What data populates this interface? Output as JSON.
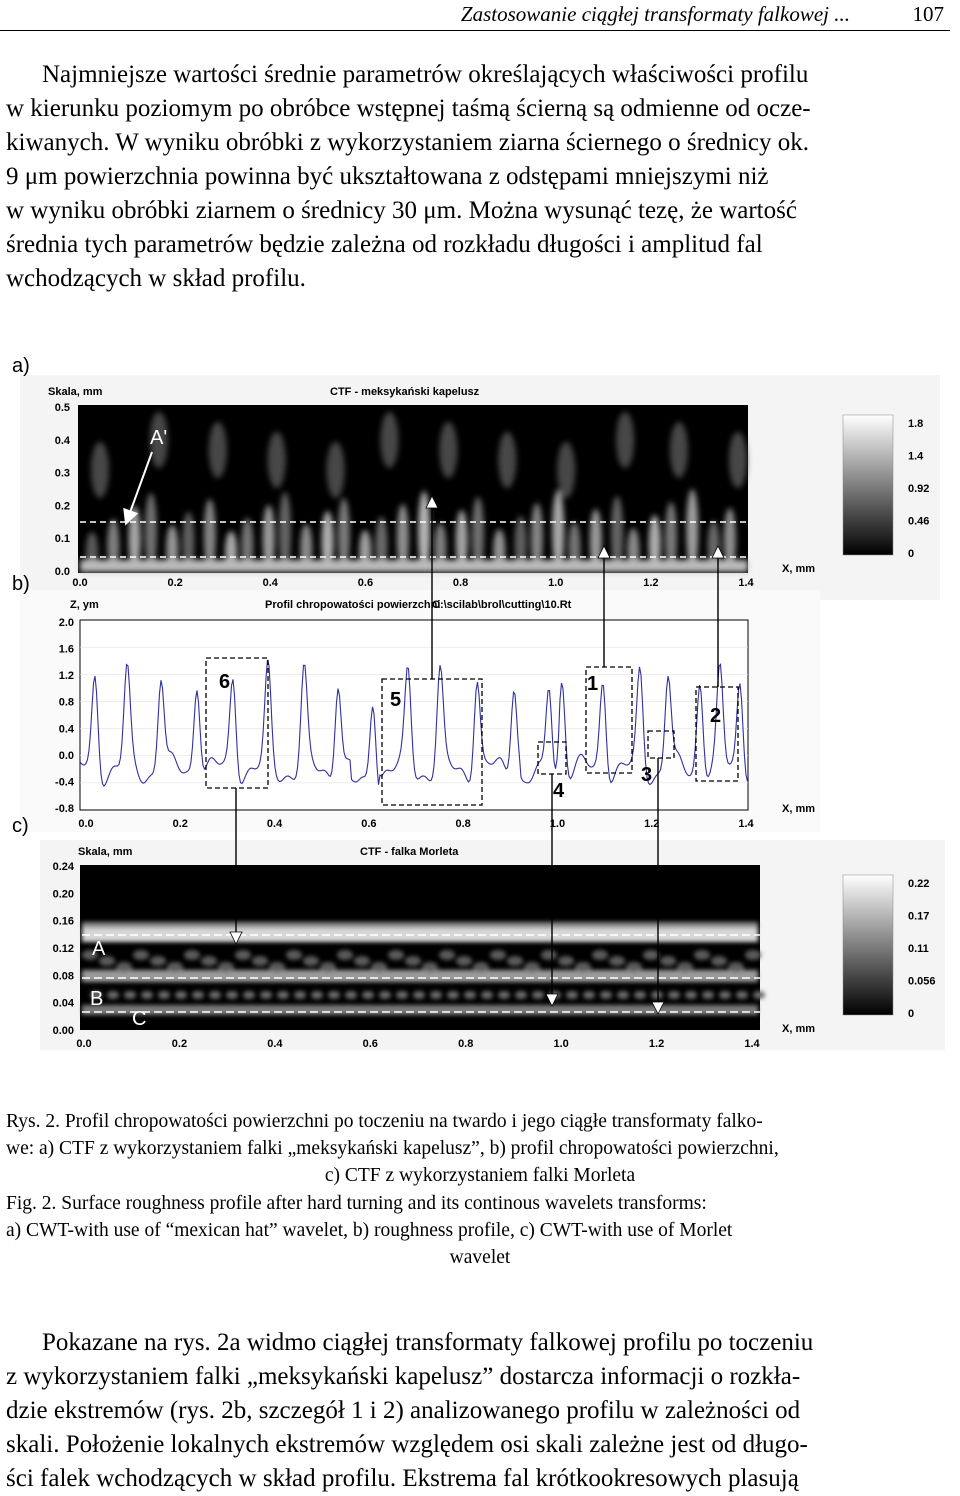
{
  "header": {
    "title": "Zastosowanie ciągłej transformaty falkowej ...",
    "page_number": "107"
  },
  "paragraph1": [
    "Najmniejsze wartości średnie parametrów określających właściwości profilu",
    "w kierunku poziomym po obróbce wstępnej taśmą ścierną są odmienne od ocze-",
    "kiwanych. W wyniku obróbki z wykorzystaniem ziarna ściernego o średnicy ok.",
    "9 μm powierzchnia powinna być ukształtowana z odstępami mniejszymi niż",
    "w wyniku obróbki ziarnem o średnicy 30 μm. Można wysunąć tezę, że wartość",
    "średnia tych parametrów będzie zależna od rozkładu długości i amplitud fal",
    "wchodzących w skład profilu."
  ],
  "figure": {
    "panel_a": {
      "letter": "a)",
      "title": "CTF - meksykański kapelusz",
      "ylabel": "Skala, mm",
      "xlabel": "X, mm",
      "yticks": [
        "0.5",
        "0.4",
        "0.3",
        "0.2",
        "0.1",
        "0.0"
      ],
      "xticks": [
        "0.0",
        "0.2",
        "0.4",
        "0.6",
        "0.8",
        "1.0",
        "1.2",
        "1.4"
      ],
      "colorbar_ticks": [
        "1.8",
        "1.4",
        "0.92",
        "0.46",
        "0"
      ],
      "annotation": "A'"
    },
    "panel_b": {
      "letter": "b)",
      "ylabel": "Z, ym",
      "title": "Profil chropowatości powierzchni",
      "filepath": "C:\\scilab\\brol\\cutting\\10.Rt",
      "xlabel": "X, mm",
      "yticks": [
        "2.0",
        "1.6",
        "1.2",
        "0.8",
        "0.4",
        "0.0",
        "-0.4",
        "-0.8"
      ],
      "xticks": [
        "0.0",
        "0.2",
        "0.4",
        "0.6",
        "0.8",
        "1.0",
        "1.2",
        "1.4"
      ],
      "box_labels": [
        "6",
        "5",
        "1",
        "2",
        "4",
        "3"
      ]
    },
    "panel_c": {
      "letter": "c)",
      "title": "CTF - falka Morleta",
      "ylabel": "Skala, mm",
      "xlabel": "X, mm",
      "yticks": [
        "0.24",
        "0.20",
        "0.16",
        "0.12",
        "0.08",
        "0.04",
        "0.00"
      ],
      "xticks": [
        "0.0",
        "0.2",
        "0.4",
        "0.6",
        "0.8",
        "1.0",
        "1.2",
        "1.4"
      ],
      "colorbar_ticks": [
        "0.22",
        "0.17",
        "0.11",
        "0.056",
        "0"
      ],
      "band_labels": [
        "A",
        "B",
        "C"
      ]
    }
  },
  "caption": {
    "pl_lines": [
      "Rys. 2. Profil chropowatości powierzchni po toczeniu na twardo i jego ciągłe transformaty falko-",
      "we: a) CTF z wykorzystaniem falki „meksykański kapelusz”, b) profil chropowatości powierzchni,",
      "c) CTF z wykorzystaniem falki Morleta"
    ],
    "en_lines": [
      "Fig. 2. Surface roughness profile after hard turning and its continous wavelets transforms:",
      "a) CWT-with use of “mexican hat” wavelet, b) roughness profile, c) CWT-with use of Morlet",
      "wavelet"
    ]
  },
  "paragraph2": [
    "Pokazane na rys. 2a widmo ciągłej transformaty falkowej profilu po toczeniu",
    "z wykorzystaniem falki „meksykański kapelusz” dostarcza informacji o rozkła-",
    "dzie ekstremów (rys. 2b, szczegół 1 i 2) analizowanego profilu w zależności od",
    "skali. Położenie lokalnych ekstremów względem osi skali zależne jest od długo-",
    "ści falek wchodzących w skład profilu. Ekstrema fal krótkookresowych plasują"
  ]
}
